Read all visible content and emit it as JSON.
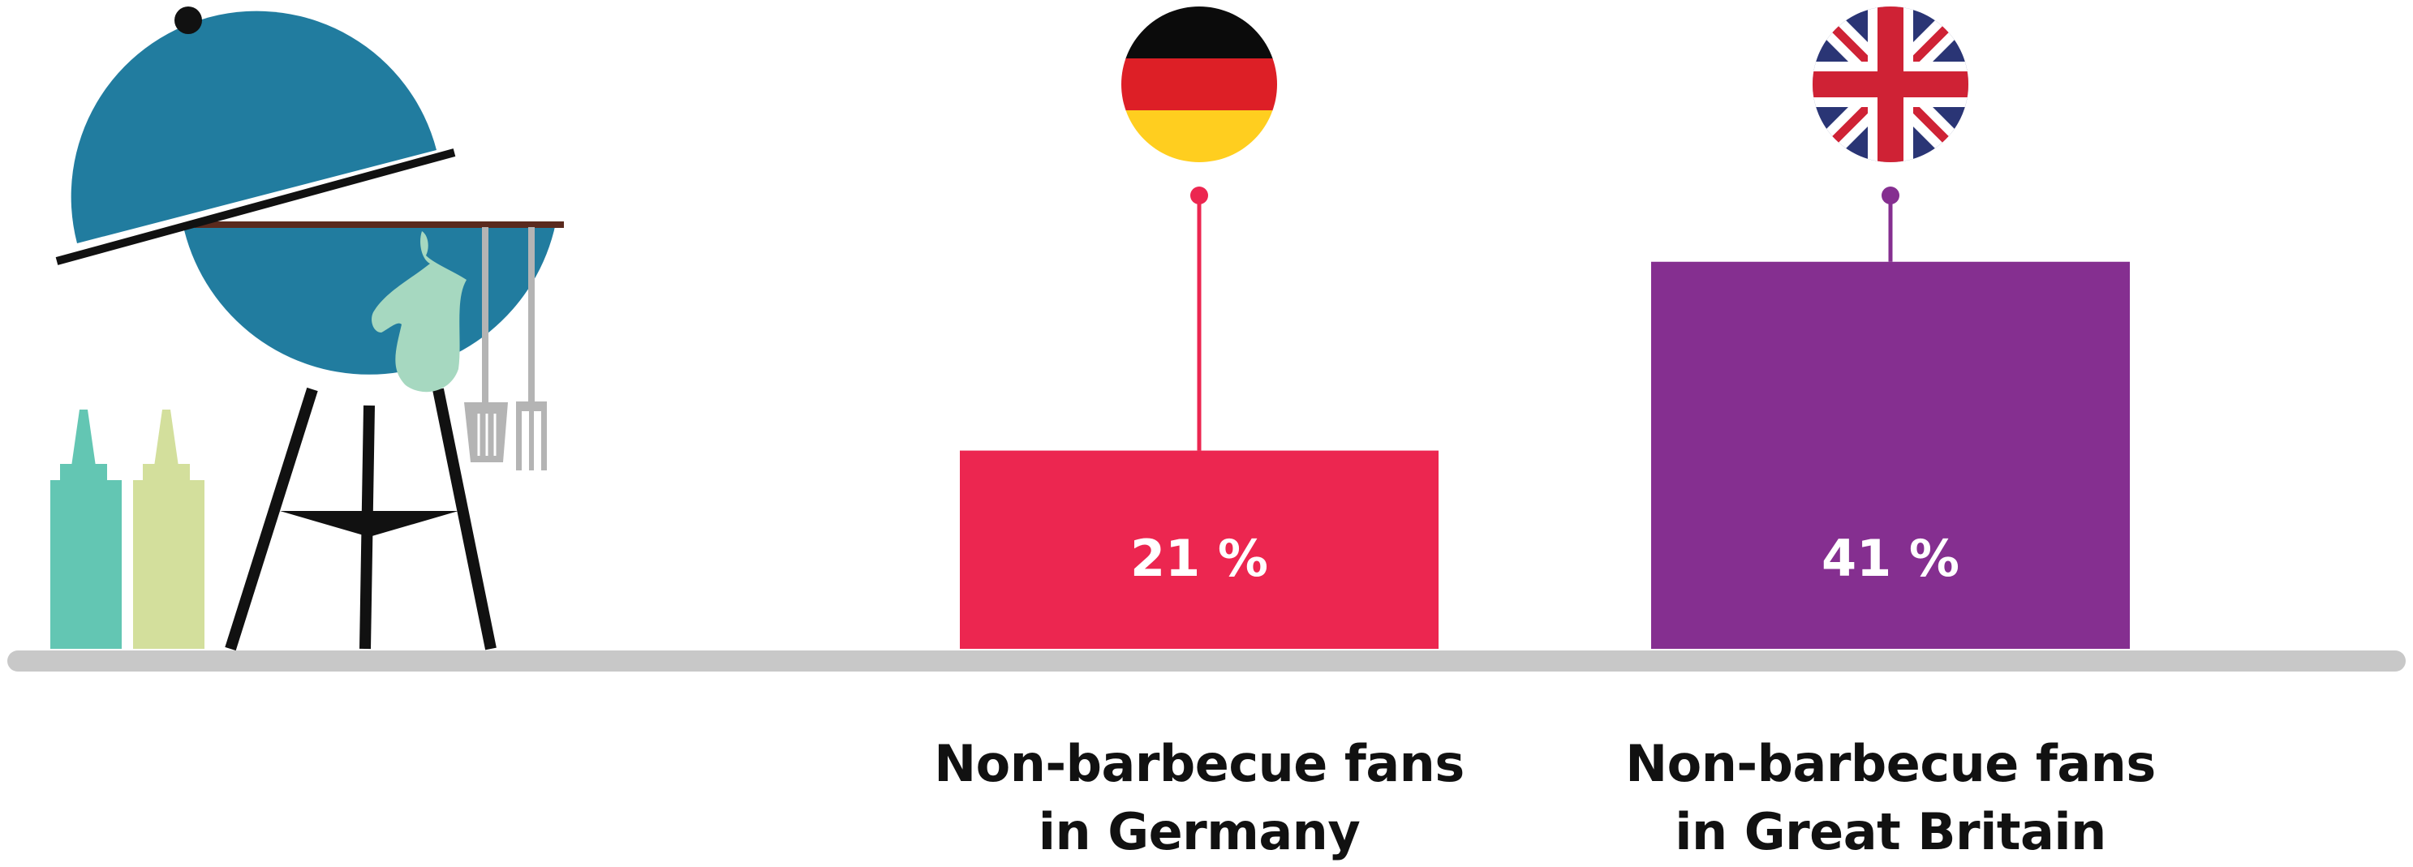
{
  "colors": {
    "background": "#ffffff",
    "ground": "#c8c8c8",
    "germany_bar": "#ec2650",
    "britain_bar": "#852f90",
    "label_text": "#111111",
    "value_text": "#ffffff",
    "grill_body": "#217c9f",
    "grill_legs": "#111111",
    "oven_mitt": "#a6d8c0",
    "bottle_left": "#63c6b3",
    "bottle_right": "#d3df9c",
    "utensils": "#b4b4b4",
    "flag_black": "#0b0b0b",
    "flag_red": "#dd1f26",
    "flag_gold": "#ffce1f",
    "uk_blue": "#2a3575",
    "uk_red": "#cf2235"
  },
  "icons": [
    "barbecue-grill-illustration",
    "condiment-bottle-icon",
    "germany-flag-icon",
    "united-kingdom-flag-icon"
  ],
  "chart_data": {
    "type": "bar",
    "unit": "%",
    "ylim": [
      0,
      100
    ],
    "grid": false,
    "categories": [
      "Non-barbecue fans\nin Germany",
      "Non-barbecue fans\nin Great Britain"
    ],
    "values": [
      21,
      41
    ],
    "value_labels": [
      "21 %",
      "41 %"
    ],
    "flags": [
      "germany-flag-icon",
      "united-kingdom-flag-icon"
    ]
  }
}
